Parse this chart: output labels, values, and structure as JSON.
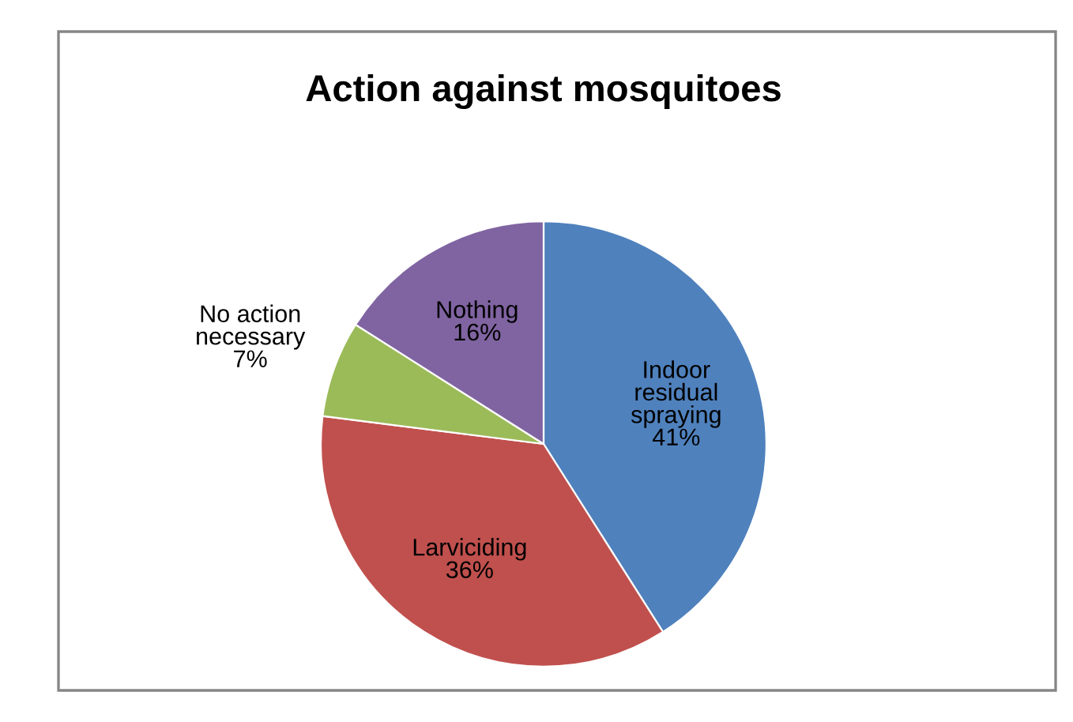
{
  "chart_data": {
    "type": "pie",
    "title": "Action against mosquitoes",
    "categories": [
      "Indoor\nresidual\nspraying",
      "Larviciding",
      "No action\nnecessary",
      "Nothing"
    ],
    "values": [
      41,
      36,
      7,
      16
    ],
    "colors": [
      "#4f81bd",
      "#c0504d",
      "#9bbb59",
      "#8064a2"
    ],
    "value_labels": [
      "41%",
      "36%",
      "7%",
      "16%"
    ],
    "legend": false
  }
}
